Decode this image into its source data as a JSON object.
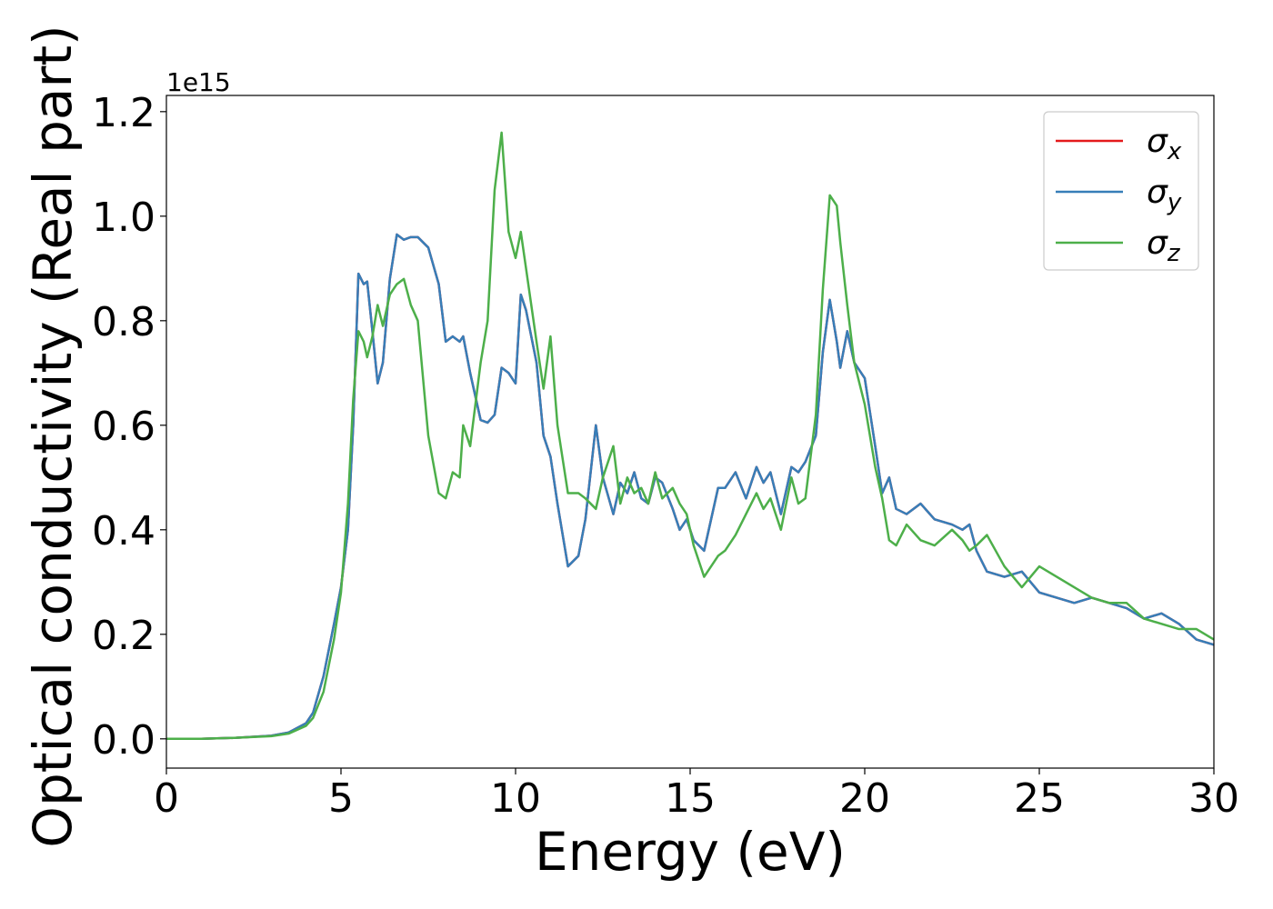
{
  "chart_data": {
    "type": "line",
    "xlabel": "Energy (eV)",
    "ylabel": "Optical conductivity (Real part)",
    "y_offset_text": "1e15",
    "xlim": [
      0,
      30
    ],
    "ylim": [
      -0.056,
      1.231
    ],
    "xticks": [
      0,
      5,
      10,
      15,
      20,
      25,
      30
    ],
    "yticks": [
      {
        "value": 0,
        "label": "0.0"
      },
      {
        "value": 0.2,
        "label": "0.2"
      },
      {
        "value": 0.4,
        "label": "0.4"
      },
      {
        "value": 0.6,
        "label": "0.6"
      },
      {
        "value": 0.8,
        "label": "0.8"
      },
      {
        "value": 1.0,
        "label": "1.0"
      },
      {
        "value": 1.2,
        "label": "1.2"
      }
    ],
    "legend": "upper right",
    "x": [
      0,
      1,
      2,
      3,
      3.5,
      4,
      4.2,
      4.5,
      4.8,
      5.0,
      5.2,
      5.35,
      5.5,
      5.65,
      5.75,
      5.9,
      6.05,
      6.2,
      6.4,
      6.6,
      6.8,
      7.0,
      7.2,
      7.5,
      7.8,
      8.0,
      8.2,
      8.4,
      8.5,
      8.7,
      9.0,
      9.2,
      9.4,
      9.6,
      9.8,
      10.0,
      10.15,
      10.3,
      10.6,
      10.8,
      11.0,
      11.2,
      11.5,
      11.8,
      12.0,
      12.3,
      12.5,
      12.8,
      13.0,
      13.2,
      13.4,
      13.6,
      13.8,
      14.0,
      14.2,
      14.5,
      14.7,
      14.9,
      15.1,
      15.4,
      15.8,
      16.0,
      16.3,
      16.6,
      16.9,
      17.1,
      17.3,
      17.6,
      17.9,
      18.1,
      18.3,
      18.6,
      18.8,
      19.0,
      19.2,
      19.3,
      19.5,
      19.7,
      20.0,
      20.3,
      20.5,
      20.7,
      20.9,
      21.2,
      21.6,
      22.0,
      22.5,
      22.8,
      23.0,
      23.2,
      23.5,
      24.0,
      24.5,
      25.0,
      25.5,
      26.0,
      26.5,
      27.0,
      27.5,
      28.0,
      28.5,
      29.0,
      29.5,
      30
    ],
    "series": [
      {
        "name": "σx",
        "color": "#e41a1c",
        "values": [
          0,
          0,
          0.002,
          0.006,
          0.012,
          0.03,
          0.05,
          0.12,
          0.22,
          0.29,
          0.4,
          0.6,
          0.89,
          0.87,
          0.875,
          0.78,
          0.68,
          0.72,
          0.88,
          0.965,
          0.955,
          0.96,
          0.96,
          0.94,
          0.87,
          0.76,
          0.77,
          0.76,
          0.77,
          0.7,
          0.61,
          0.605,
          0.62,
          0.71,
          0.7,
          0.68,
          0.85,
          0.82,
          0.72,
          0.58,
          0.54,
          0.45,
          0.33,
          0.35,
          0.42,
          0.6,
          0.5,
          0.43,
          0.49,
          0.47,
          0.51,
          0.46,
          0.45,
          0.5,
          0.49,
          0.44,
          0.4,
          0.42,
          0.38,
          0.36,
          0.48,
          0.48,
          0.51,
          0.46,
          0.52,
          0.49,
          0.51,
          0.43,
          0.52,
          0.51,
          0.53,
          0.58,
          0.74,
          0.84,
          0.76,
          0.71,
          0.78,
          0.72,
          0.69,
          0.56,
          0.47,
          0.5,
          0.44,
          0.43,
          0.45,
          0.42,
          0.41,
          0.4,
          0.41,
          0.36,
          0.32,
          0.31,
          0.32,
          0.28,
          0.27,
          0.26,
          0.27,
          0.26,
          0.25,
          0.23,
          0.24,
          0.22,
          0.19,
          0.18
        ]
      },
      {
        "name": "σy",
        "color": "#377eb8",
        "values": [
          0,
          0,
          0.002,
          0.006,
          0.012,
          0.03,
          0.05,
          0.12,
          0.22,
          0.29,
          0.4,
          0.6,
          0.89,
          0.87,
          0.875,
          0.78,
          0.68,
          0.72,
          0.88,
          0.965,
          0.955,
          0.96,
          0.96,
          0.94,
          0.87,
          0.76,
          0.77,
          0.76,
          0.77,
          0.7,
          0.61,
          0.605,
          0.62,
          0.71,
          0.7,
          0.68,
          0.85,
          0.82,
          0.72,
          0.58,
          0.54,
          0.45,
          0.33,
          0.35,
          0.42,
          0.6,
          0.5,
          0.43,
          0.49,
          0.47,
          0.51,
          0.46,
          0.45,
          0.5,
          0.49,
          0.44,
          0.4,
          0.42,
          0.38,
          0.36,
          0.48,
          0.48,
          0.51,
          0.46,
          0.52,
          0.49,
          0.51,
          0.43,
          0.52,
          0.51,
          0.53,
          0.58,
          0.74,
          0.84,
          0.76,
          0.71,
          0.78,
          0.72,
          0.69,
          0.56,
          0.47,
          0.5,
          0.44,
          0.43,
          0.45,
          0.42,
          0.41,
          0.4,
          0.41,
          0.36,
          0.32,
          0.31,
          0.32,
          0.28,
          0.27,
          0.26,
          0.27,
          0.26,
          0.25,
          0.23,
          0.24,
          0.22,
          0.19,
          0.18
        ]
      },
      {
        "name": "σz",
        "color": "#4daf4a",
        "values": [
          0,
          0,
          0.002,
          0.005,
          0.01,
          0.025,
          0.04,
          0.09,
          0.19,
          0.28,
          0.45,
          0.65,
          0.78,
          0.76,
          0.73,
          0.77,
          0.83,
          0.79,
          0.85,
          0.87,
          0.88,
          0.83,
          0.8,
          0.58,
          0.47,
          0.46,
          0.51,
          0.5,
          0.6,
          0.56,
          0.72,
          0.8,
          1.05,
          1.16,
          0.97,
          0.92,
          0.97,
          0.9,
          0.76,
          0.67,
          0.77,
          0.6,
          0.47,
          0.47,
          0.46,
          0.44,
          0.5,
          0.56,
          0.45,
          0.5,
          0.47,
          0.48,
          0.45,
          0.51,
          0.46,
          0.48,
          0.45,
          0.43,
          0.37,
          0.31,
          0.35,
          0.36,
          0.39,
          0.43,
          0.47,
          0.44,
          0.46,
          0.4,
          0.5,
          0.45,
          0.46,
          0.62,
          0.86,
          1.04,
          1.02,
          0.95,
          0.83,
          0.72,
          0.64,
          0.52,
          0.46,
          0.38,
          0.37,
          0.41,
          0.38,
          0.37,
          0.4,
          0.38,
          0.36,
          0.37,
          0.39,
          0.33,
          0.29,
          0.33,
          0.31,
          0.29,
          0.27,
          0.26,
          0.26,
          0.23,
          0.22,
          0.21,
          0.21,
          0.19
        ]
      }
    ]
  }
}
